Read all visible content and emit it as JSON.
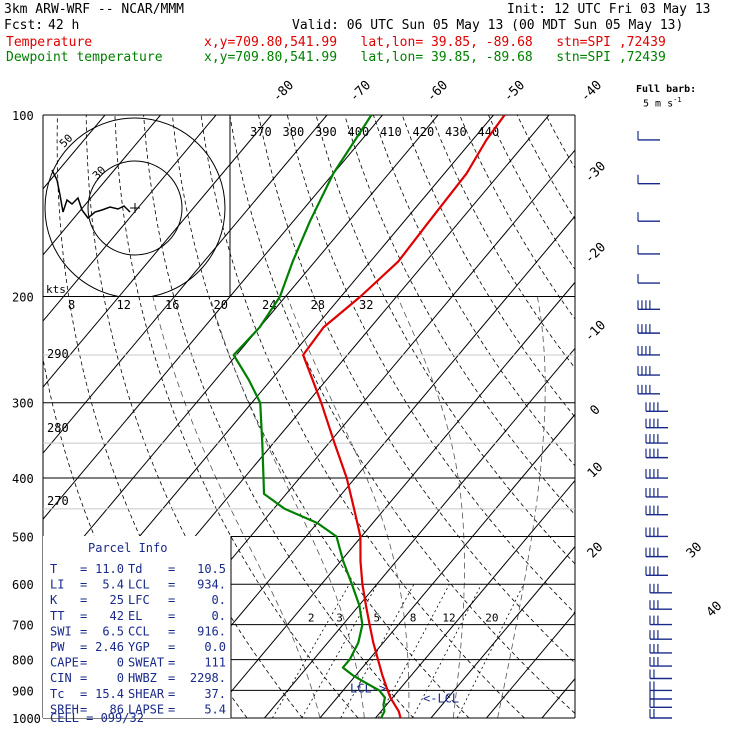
{
  "header": {
    "model": "3km ARW-WRF -- NCAR/MMM",
    "init": "Init: 12 UTC Fri 03 May 13",
    "fcst_label": "Fcst:",
    "fcst_hours": "42 h",
    "valid": "Valid: 06 UTC Sun 05 May 13 (00 MDT Sun 05 May 13)",
    "temp_label": "Temperature",
    "dew_label": "Dewpoint temperature",
    "loc_info": "x,y=709.80,541.99   lat,lon= 39.85, -89.68   stn=SPI ,72439",
    "temp_color": "#e00000",
    "dew_color": "#008000"
  },
  "barb_legend": {
    "line1": "Full barb:",
    "line2": "5 m s",
    "sup": "-1"
  },
  "chart_data": {
    "type": "line",
    "title": "",
    "pressure_levels": [
      100,
      200,
      300,
      400,
      500,
      600,
      700,
      800,
      900,
      1000
    ],
    "ylim": [
      100,
      1000
    ],
    "isotherm_top_labels": [
      "-80",
      "-70",
      "-60",
      "-50",
      "-40"
    ],
    "isotherm_right_labels": [
      "-30",
      "-20",
      "-10",
      "0",
      "10",
      "20",
      "30",
      "40"
    ],
    "theta_labels": [
      "370",
      "380",
      "390",
      "400",
      "410",
      "420",
      "430",
      "440"
    ],
    "theta_left_labels": [
      "290",
      "280",
      "270"
    ],
    "mixing_ratio_labels": [
      "2",
      "3",
      "5",
      "8",
      "12",
      "20"
    ],
    "lcl_labels": [
      "LCL->",
      "<-LCL"
    ],
    "series": [
      {
        "name": "Temperature",
        "color": "#e00000",
        "points": [
          [
            1000,
            14.5
          ],
          [
            975,
            13.2
          ],
          [
            950,
            11.4
          ],
          [
            925,
            9.6
          ],
          [
            900,
            8.0
          ],
          [
            850,
            4.8
          ],
          [
            800,
            1.6
          ],
          [
            750,
            -1.8
          ],
          [
            700,
            -5.2
          ],
          [
            650,
            -8.8
          ],
          [
            600,
            -12.6
          ],
          [
            550,
            -16.4
          ],
          [
            500,
            -20.2
          ],
          [
            450,
            -25.5
          ],
          [
            400,
            -31.5
          ],
          [
            350,
            -39.0
          ],
          [
            300,
            -47.5
          ],
          [
            275,
            -52.5
          ],
          [
            250,
            -58.0
          ],
          [
            225,
            -58.5
          ],
          [
            200,
            -56.5
          ],
          [
            175,
            -55.0
          ],
          [
            150,
            -55.5
          ],
          [
            125,
            -56.0
          ],
          [
            110,
            -57.5
          ],
          [
            100,
            -58.0
          ]
        ]
      },
      {
        "name": "Dewpoint temperature",
        "color": "#008000",
        "points": [
          [
            1000,
            11.0
          ],
          [
            975,
            10.6
          ],
          [
            950,
            9.4
          ],
          [
            925,
            8.6
          ],
          [
            900,
            6.5
          ],
          [
            875,
            3.0
          ],
          [
            850,
            -0.5
          ],
          [
            825,
            -3.5
          ],
          [
            800,
            -3.5
          ],
          [
            750,
            -4.5
          ],
          [
            700,
            -6.5
          ],
          [
            650,
            -10.0
          ],
          [
            600,
            -14.5
          ],
          [
            550,
            -19.5
          ],
          [
            500,
            -24.5
          ],
          [
            475,
            -30.0
          ],
          [
            450,
            -38.0
          ],
          [
            425,
            -44.0
          ],
          [
            400,
            -46.5
          ],
          [
            350,
            -52.0
          ],
          [
            300,
            -58.5
          ],
          [
            275,
            -64.0
          ],
          [
            250,
            -70.5
          ],
          [
            225,
            -70.0
          ],
          [
            200,
            -71.0
          ],
          [
            175,
            -74.0
          ],
          [
            150,
            -77.0
          ],
          [
            125,
            -80.0
          ],
          [
            100,
            -82.0
          ]
        ]
      }
    ]
  },
  "hodograph": {
    "axis_label": "kts",
    "speed_labels": [
      "8",
      "12",
      "16",
      "20",
      "24",
      "28",
      "32"
    ],
    "ring_labels": [
      "50",
      "30"
    ]
  },
  "parcel_info": {
    "title": "Parcel Info",
    "rows": [
      {
        "l1": "T",
        "v1": "11.0",
        "l2": "Td",
        "v2": "10.5"
      },
      {
        "l1": "LI",
        "v1": "5.4",
        "l2": "LCL",
        "v2": "934."
      },
      {
        "l1": "K",
        "v1": "25",
        "l2": "LFC",
        "v2": "0."
      },
      {
        "l1": "TT",
        "v1": "42",
        "l2": "EL",
        "v2": "0."
      },
      {
        "l1": "SWI",
        "v1": "6.5",
        "l2": "CCL",
        "v2": "916."
      },
      {
        "l1": "PW",
        "v1": "2.46",
        "l2": "YGP",
        "v2": "0.0"
      },
      {
        "l1": "CAPE",
        "v1": "0",
        "l2": "SWEAT",
        "v2": "111"
      },
      {
        "l1": "CIN",
        "v1": "0",
        "l2": "HWBZ",
        "v2": "2298."
      },
      {
        "l1": "Tc",
        "v1": "15.4",
        "l2": "SHEAR",
        "v2": "37."
      },
      {
        "l1": "SREH",
        "v1": "86",
        "l2": "LAPSE",
        "v2": "5.4"
      }
    ],
    "cell": "CELL = 099/32"
  },
  "wind_barbs_color": "#1a2a8a"
}
